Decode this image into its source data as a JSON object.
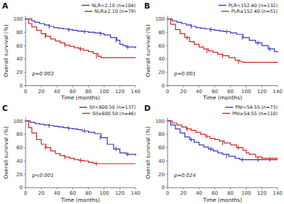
{
  "chart_data": [
    {
      "type": "step",
      "title": "A",
      "xlabel": "Time (months)",
      "ylabel": "Overall survival (%)",
      "xlim": [
        0,
        140
      ],
      "ylim": [
        0,
        105
      ],
      "xticks": [
        0,
        20,
        40,
        60,
        80,
        100,
        120,
        140
      ],
      "yticks": [
        0,
        20,
        40,
        60,
        80,
        100
      ],
      "grid": false,
      "legend": "upper right",
      "annotations": [
        "p=0.003"
      ],
      "series": [
        {
          "name": "NLR<2.10 (n=104)",
          "color": "#3333bb",
          "x": [
            0,
            8,
            12,
            18,
            24,
            30,
            36,
            42,
            48,
            54,
            60,
            66,
            72,
            80,
            88,
            96,
            100,
            108,
            116,
            120,
            124,
            128,
            140
          ],
          "values": [
            100,
            97,
            95,
            93,
            91,
            89,
            87,
            86,
            85,
            84,
            83,
            82,
            81,
            80,
            79,
            78,
            76,
            72,
            68,
            62,
            60,
            58,
            56
          ],
          "censor_x": [
            30,
            55,
            75,
            95,
            115,
            130
          ],
          "censor_y": [
            89,
            84,
            81,
            78,
            68,
            58
          ]
        },
        {
          "name": "NLR≥2.10 (n=79)",
          "color": "#cc2222",
          "x": [
            0,
            4,
            8,
            14,
            20,
            26,
            32,
            38,
            44,
            50,
            56,
            62,
            68,
            74,
            80,
            86,
            92,
            96,
            100,
            110,
            120,
            140
          ],
          "values": [
            100,
            93,
            88,
            83,
            78,
            74,
            70,
            67,
            64,
            61,
            59,
            57,
            55,
            53,
            51,
            48,
            44,
            42,
            42,
            42,
            42,
            42
          ],
          "censor_x": [
            25,
            50,
            70,
            90
          ],
          "censor_y": [
            74,
            61,
            55,
            44
          ]
        }
      ]
    },
    {
      "type": "step",
      "title": "B",
      "xlabel": "Time (months)",
      "ylabel": "Overall survival (%)",
      "xlim": [
        0,
        140
      ],
      "ylim": [
        0,
        105
      ],
      "xticks": [
        0,
        20,
        40,
        60,
        80,
        100,
        120,
        140
      ],
      "yticks": [
        0,
        20,
        40,
        60,
        80,
        100
      ],
      "grid": false,
      "legend": "upper right",
      "annotations": [
        "p=0.001"
      ],
      "series": [
        {
          "name": "PLR<152.40 (n=132)",
          "color": "#3333bb",
          "x": [
            0,
            6,
            12,
            18,
            24,
            30,
            36,
            42,
            48,
            54,
            60,
            66,
            72,
            80,
            88,
            96,
            104,
            112,
            120,
            128,
            136,
            140
          ],
          "values": [
            100,
            97,
            95,
            93,
            91,
            89,
            87,
            86,
            85,
            84,
            83,
            82,
            81,
            79,
            77,
            72,
            68,
            64,
            60,
            55,
            51,
            50
          ],
          "censor_x": [
            30,
            55,
            75,
            95,
            115,
            130
          ],
          "censor_y": [
            89,
            84,
            81,
            72,
            64,
            55
          ]
        },
        {
          "name": "PLR≥152.40 (n=51)",
          "color": "#cc2222",
          "x": [
            0,
            4,
            10,
            16,
            22,
            28,
            34,
            40,
            46,
            52,
            58,
            64,
            70,
            78,
            86,
            92,
            96,
            100,
            110,
            120,
            140
          ],
          "values": [
            100,
            92,
            84,
            78,
            72,
            66,
            62,
            58,
            55,
            52,
            50,
            47,
            45,
            42,
            38,
            36,
            35,
            35,
            35,
            35,
            35
          ],
          "censor_x": [
            25,
            50,
            70,
            90
          ],
          "censor_y": [
            72,
            52,
            45,
            36
          ]
        }
      ]
    },
    {
      "type": "step",
      "title": "C",
      "xlabel": "Time (months)",
      "ylabel": "Overall survival (%)",
      "xlim": [
        0,
        140
      ],
      "ylim": [
        0,
        105
      ],
      "xticks": [
        0,
        20,
        40,
        60,
        80,
        100,
        120,
        140
      ],
      "yticks": [
        0,
        20,
        40,
        60,
        80,
        100
      ],
      "grid": false,
      "legend": "upper right",
      "annotations": [
        "p<0.001"
      ],
      "series": [
        {
          "name": "SII<600.50 (n=137)",
          "color": "#3333bb",
          "x": [
            0,
            6,
            12,
            18,
            24,
            30,
            36,
            42,
            48,
            54,
            60,
            66,
            72,
            80,
            88,
            96,
            104,
            112,
            120,
            128,
            140
          ],
          "values": [
            100,
            98,
            96,
            95,
            94,
            93,
            92,
            91,
            90,
            89,
            88,
            87,
            85,
            83,
            81,
            75,
            65,
            58,
            52,
            50,
            48
          ],
          "censor_x": [
            30,
            55,
            75,
            95,
            115,
            130
          ],
          "censor_y": [
            93,
            89,
            85,
            75,
            58,
            50
          ]
        },
        {
          "name": "SII≥600.50 (n=46)",
          "color": "#cc2222",
          "x": [
            0,
            4,
            8,
            14,
            20,
            26,
            32,
            38,
            44,
            50,
            56,
            62,
            68,
            74,
            80,
            86,
            88,
            90,
            100,
            120,
            140
          ],
          "values": [
            100,
            90,
            82,
            72,
            65,
            60,
            55,
            51,
            48,
            46,
            44,
            42,
            41,
            40,
            38,
            37,
            36,
            36,
            36,
            36,
            36
          ],
          "censor_x": [
            25,
            50,
            70,
            90
          ],
          "censor_y": [
            60,
            46,
            41,
            36
          ]
        }
      ]
    },
    {
      "type": "step",
      "title": "D",
      "xlabel": "Time (months)",
      "ylabel": "Overall survival (%)",
      "xlim": [
        0,
        140
      ],
      "ylim": [
        0,
        105
      ],
      "xticks": [
        0,
        20,
        40,
        60,
        80,
        100,
        120,
        140
      ],
      "yticks": [
        0,
        20,
        40,
        60,
        80,
        100
      ],
      "grid": false,
      "legend": "upper right",
      "annotations": [
        "p=0.024"
      ],
      "series": [
        {
          "name": "PNI<54.55 (n=73)",
          "color": "#3333bb",
          "x": [
            0,
            4,
            10,
            16,
            22,
            28,
            34,
            40,
            46,
            52,
            58,
            64,
            70,
            78,
            86,
            92,
            96,
            100,
            106,
            112,
            120,
            128,
            140
          ],
          "values": [
            100,
            94,
            88,
            82,
            76,
            72,
            68,
            64,
            61,
            58,
            55,
            52,
            50,
            47,
            44,
            42,
            42,
            42,
            42,
            42,
            42,
            42,
            42
          ],
          "censor_x": [
            30,
            55,
            75,
            95,
            115,
            130
          ],
          "censor_y": [
            72,
            58,
            47,
            42,
            42,
            42
          ]
        },
        {
          "name": "PNI≥54.55 (n=110)",
          "color": "#cc2222",
          "x": [
            0,
            6,
            12,
            18,
            24,
            30,
            36,
            42,
            48,
            54,
            60,
            66,
            72,
            80,
            88,
            96,
            100,
            104,
            112,
            120,
            124,
            128,
            140
          ],
          "values": [
            100,
            97,
            94,
            91,
            88,
            86,
            83,
            80,
            77,
            74,
            72,
            70,
            67,
            64,
            60,
            56,
            52,
            50,
            46,
            44,
            44,
            44,
            44
          ],
          "censor_x": [
            25,
            50,
            70,
            90
          ],
          "censor_y": [
            88,
            77,
            67,
            60
          ]
        }
      ]
    }
  ]
}
